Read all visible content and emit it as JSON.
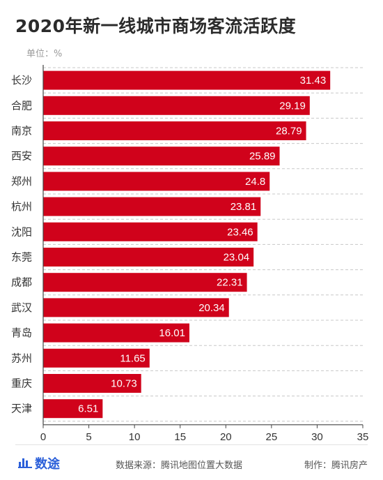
{
  "title": "2020年新一线城市商场客流活跃度",
  "unit": "单位：%",
  "chart_data": {
    "type": "bar",
    "orientation": "horizontal",
    "categories": [
      "长沙",
      "合肥",
      "南京",
      "西安",
      "郑州",
      "杭州",
      "沈阳",
      "东莞",
      "成都",
      "武汉",
      "青岛",
      "苏州",
      "重庆",
      "天津"
    ],
    "values": [
      31.43,
      29.19,
      28.79,
      25.89,
      24.8,
      23.81,
      23.46,
      23.04,
      22.31,
      20.34,
      16.01,
      11.65,
      10.73,
      6.51
    ],
    "value_labels": [
      "31.43",
      "29.19",
      "28.79",
      "25.89",
      "24.8",
      "23.81",
      "23.46",
      "23.04",
      "22.31",
      "20.34",
      "16.01",
      "11.65",
      "10.73",
      "6.51"
    ],
    "xticks": [
      "0",
      "5",
      "10",
      "15",
      "20",
      "25",
      "30",
      "35"
    ],
    "xlim": [
      0,
      35
    ],
    "grid": "dashed horizontal",
    "bar_color": "#d0021b",
    "label_color": "#ffffff"
  },
  "footer": {
    "logo_text": "数途",
    "logo_icon": "bar-chart-icon",
    "logo_color": "#2b5fd9",
    "source": "数据来源：腾讯地图位置大数据",
    "maker": "制作：腾讯房产"
  }
}
